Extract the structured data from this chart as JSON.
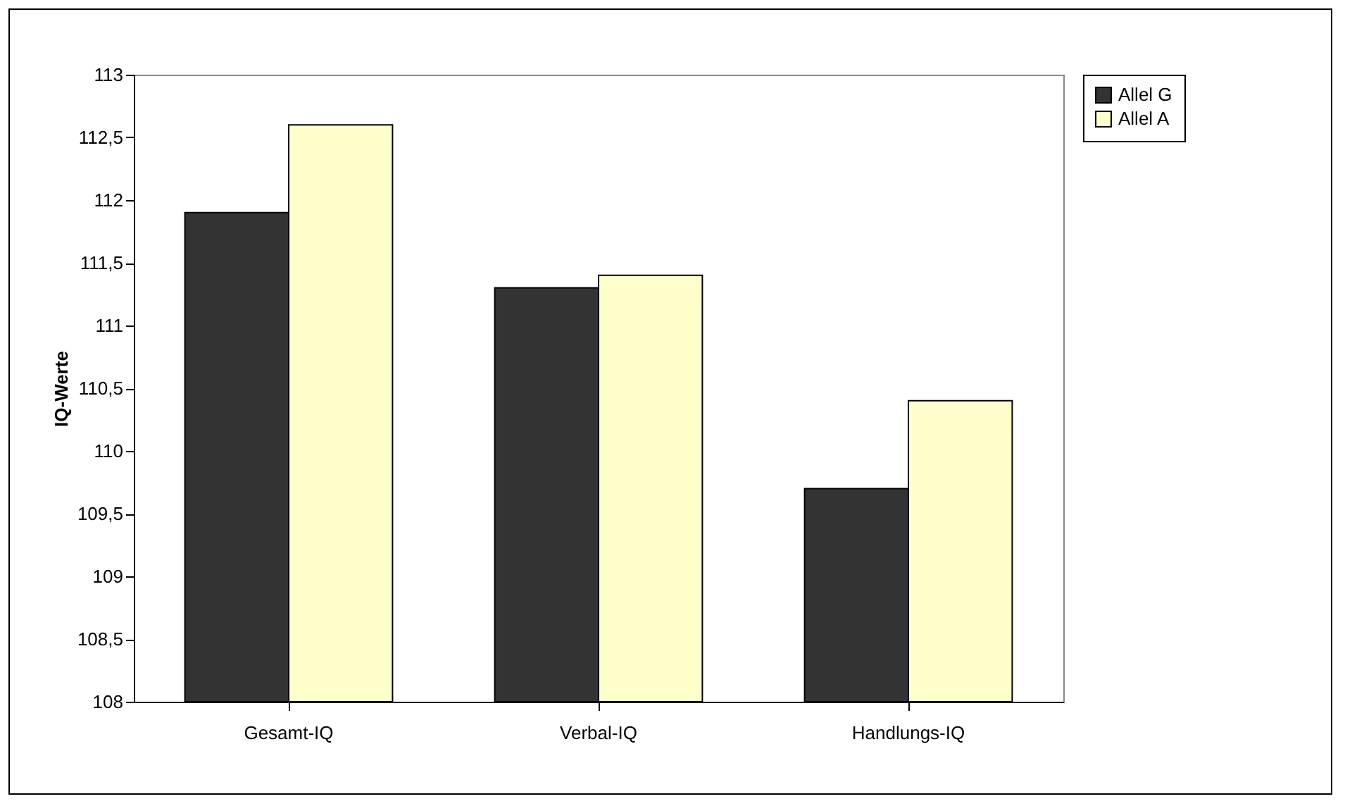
{
  "chart_data": {
    "type": "bar",
    "ylabel": "IQ-Werte",
    "categories": [
      "Gesamt-IQ",
      "Verbal-IQ",
      "Handlungs-IQ"
    ],
    "series": [
      {
        "name": "Allel G",
        "color": "#333333",
        "values": [
          111.9,
          111.3,
          109.7
        ]
      },
      {
        "name": "Allel A",
        "color": "#ffffcc",
        "values": [
          112.6,
          111.4,
          110.4
        ]
      }
    ],
    "ylim": [
      108,
      113
    ],
    "yticks": [
      108,
      {
        "value": 108.5,
        "label": "108,5"
      },
      109,
      {
        "value": 109.5,
        "label": "109,5"
      },
      110,
      {
        "value": 110.5,
        "label": "110,5"
      },
      111,
      {
        "value": 111.5,
        "label": "111,5"
      },
      112,
      {
        "value": 112.5,
        "label": "112,5"
      },
      113
    ],
    "grid": false,
    "legend": "right"
  }
}
